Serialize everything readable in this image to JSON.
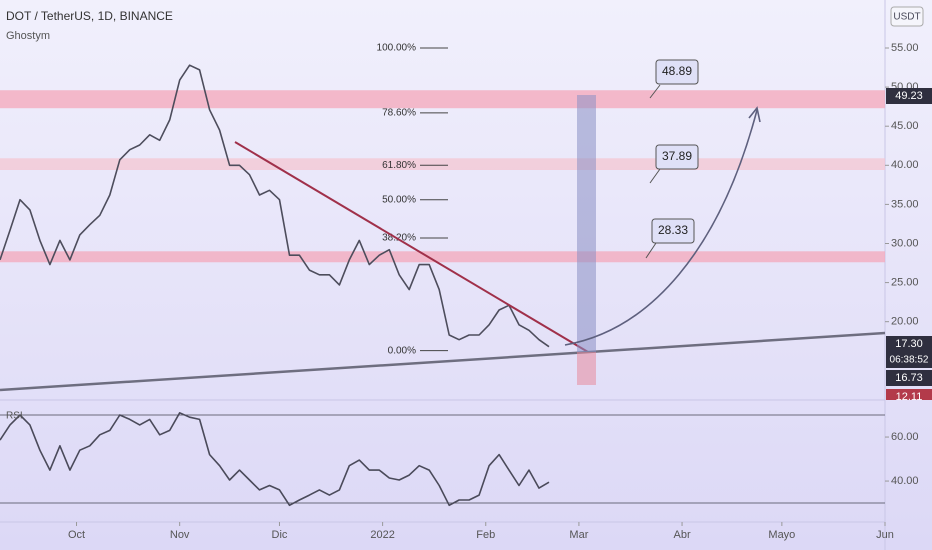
{
  "title": "DOT / TetherUS, 1D, BINANCE",
  "author": "Ghostym",
  "currency": "USDT",
  "annotations": [
    48.89,
    37.89,
    28.33
  ],
  "price_badges": [
    {
      "value": 49.23,
      "label": "49.23"
    },
    {
      "value": 17.3,
      "label": "17.30"
    },
    {
      "value": 16.73,
      "label": "16.73"
    },
    {
      "value": 12.11,
      "label": "12.11"
    }
  ],
  "countdown": "06:38:52",
  "chart_data": [
    {
      "type": "line",
      "xlim": [
        -23,
        243
      ],
      "ylim": [
        10.24,
        61.14
      ],
      "yticks": [
        {
          "value": 20,
          "label": "20.00"
        },
        {
          "value": 25,
          "label": "25.00"
        },
        {
          "value": 30,
          "label": "30.00"
        },
        {
          "value": 35,
          "label": "35.00"
        },
        {
          "value": 40,
          "label": "40.00"
        },
        {
          "value": 45,
          "label": "45.00"
        },
        {
          "value": 50,
          "label": "50.00"
        },
        {
          "value": 55,
          "label": "55.00"
        }
      ],
      "zones": [
        {
          "from": 47.3,
          "to": 49.6,
          "color": "#f4a7b9"
        },
        {
          "from": 39.4,
          "to": 40.9,
          "color": "#f4c6d2"
        },
        {
          "from": 27.6,
          "to": 29.0,
          "color": "#f4a7b9"
        }
      ],
      "fib": [
        {
          "value": 55,
          "label": "100.00%"
        },
        {
          "value": 46.7,
          "label": "78.60%"
        },
        {
          "value": 40.0,
          "label": "61.80%"
        },
        {
          "value": 35.6,
          "label": "50.00%"
        },
        {
          "value": 30.7,
          "label": "38.20%"
        },
        {
          "value": 16.3,
          "label": "0.00%"
        }
      ],
      "x": [
        -23,
        -20,
        -17,
        -14,
        -11,
        -8,
        -5,
        -2,
        1,
        4,
        7,
        10,
        13,
        16,
        19,
        22,
        25,
        28,
        31,
        34,
        37,
        40,
        43,
        46,
        49,
        52,
        55,
        58,
        61,
        64,
        67,
        70,
        73,
        76,
        79,
        82,
        85,
        88,
        91,
        94,
        97,
        100,
        103,
        106,
        109,
        112,
        115,
        118,
        121,
        124,
        127,
        130,
        133,
        136,
        139,
        142
      ],
      "series": [
        {
          "name": "DOT / TetherUS",
          "color": "#4d4d5c",
          "values": [
            27.9,
            31.7,
            35.6,
            34.3,
            30.4,
            27.3,
            30.4,
            27.9,
            31.1,
            32.4,
            33.6,
            36.2,
            40.7,
            42.0,
            42.6,
            43.9,
            43.2,
            45.8,
            50.9,
            52.8,
            52.2,
            47.1,
            44.5,
            40.0,
            40.0,
            38.8,
            36.2,
            36.8,
            35.6,
            28.5,
            28.5,
            26.6,
            26.0,
            26.0,
            24.7,
            27.9,
            30.4,
            27.3,
            28.5,
            29.2,
            26.0,
            24.1,
            27.3,
            27.3,
            24.1,
            18.3,
            17.7,
            18.3,
            18.3,
            19.6,
            21.5,
            22.1,
            19.6,
            18.9,
            17.7,
            16.8
          ]
        }
      ]
    },
    {
      "type": "line",
      "indicator": "RSI",
      "xlim": [
        -23,
        243
      ],
      "ylim": [
        22.3,
        73.2
      ],
      "yticks": [
        {
          "value": 40,
          "label": "40.00"
        },
        {
          "value": 60,
          "label": "60.00"
        }
      ],
      "bands": [
        70,
        30
      ],
      "xticks": [
        {
          "value": 0,
          "label": "Oct"
        },
        {
          "value": 31,
          "label": "Nov"
        },
        {
          "value": 61,
          "label": "Dic"
        },
        {
          "value": 92,
          "label": "2022"
        },
        {
          "value": 123,
          "label": "Feb"
        },
        {
          "value": 151,
          "label": "Mar"
        },
        {
          "value": 182,
          "label": "Abr"
        },
        {
          "value": 212,
          "label": "Mayo"
        },
        {
          "value": 243,
          "label": "Jun"
        }
      ],
      "x": [
        -23,
        -20,
        -17,
        -14,
        -11,
        -8,
        -5,
        -2,
        1,
        4,
        7,
        10,
        13,
        16,
        19,
        22,
        25,
        28,
        31,
        34,
        37,
        40,
        43,
        46,
        49,
        52,
        55,
        58,
        61,
        64,
        67,
        70,
        73,
        76,
        79,
        82,
        85,
        88,
        91,
        94,
        97,
        100,
        103,
        106,
        109,
        112,
        115,
        118,
        121,
        124,
        127,
        130,
        133,
        136,
        139,
        142
      ],
      "series": [
        {
          "name": "RSI",
          "color": "#4a4a5a",
          "values": [
            58.6,
            65.5,
            70,
            65.5,
            54,
            45,
            56,
            45,
            54,
            56,
            61,
            63,
            70,
            68,
            65.5,
            68,
            61,
            63,
            71,
            69,
            68,
            52,
            47,
            40.5,
            45,
            40.5,
            36,
            38,
            36,
            29,
            31.4,
            33.6,
            36,
            33.6,
            36,
            47,
            49.5,
            45,
            45,
            41.4,
            40.5,
            42.7,
            47,
            45,
            38,
            29,
            31.4,
            31.4,
            33.6,
            47,
            52,
            45,
            38,
            45,
            36.8,
            39.5
          ]
        }
      ]
    }
  ]
}
